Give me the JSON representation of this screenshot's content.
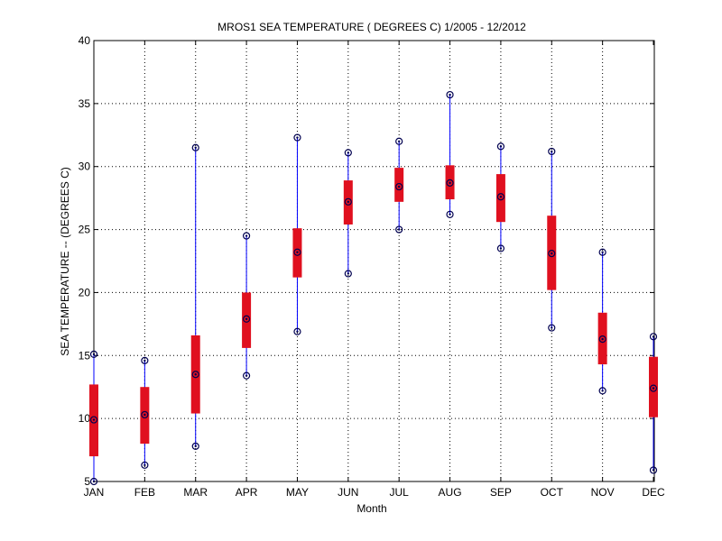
{
  "chart_data": {
    "type": "box",
    "title": "MROS1  SEA TEMPERATURE ( DEGREES C) 1/2005 - 12/2012",
    "xlabel": "Month",
    "ylabel": "SEA TEMPERATURE -- (DEGREES C)",
    "ylim": [
      5,
      40
    ],
    "yticks": [
      5,
      10,
      15,
      20,
      25,
      30,
      35,
      40
    ],
    "grid": true,
    "categories": [
      "JAN",
      "FEB",
      "MAR",
      "APR",
      "MAY",
      "JUN",
      "JUL",
      "AUG",
      "SEP",
      "OCT",
      "NOV",
      "DEC"
    ],
    "series": [
      {
        "min": [
          5.0,
          6.3,
          7.8,
          13.4,
          16.9,
          21.5,
          25.0,
          26.2,
          23.5,
          17.2,
          12.2,
          5.9
        ],
        "q1": [
          7.0,
          8.0,
          10.4,
          15.6,
          21.2,
          25.4,
          27.2,
          27.4,
          25.6,
          20.2,
          14.3,
          10.1
        ],
        "median": [
          9.9,
          10.3,
          13.5,
          17.9,
          23.2,
          27.2,
          28.4,
          28.7,
          27.6,
          23.1,
          16.3,
          12.4
        ],
        "q3": [
          12.7,
          12.5,
          16.6,
          20.0,
          25.1,
          28.9,
          29.9,
          30.1,
          29.4,
          26.1,
          18.4,
          14.9
        ],
        "max": [
          15.1,
          14.6,
          31.5,
          24.5,
          32.3,
          31.1,
          32.0,
          35.7,
          31.6,
          31.2,
          23.2,
          16.5
        ]
      }
    ],
    "colors": {
      "box": "#e0101f",
      "whisker": "#0000ff",
      "marker": "#000050",
      "grid": "#000000"
    }
  }
}
